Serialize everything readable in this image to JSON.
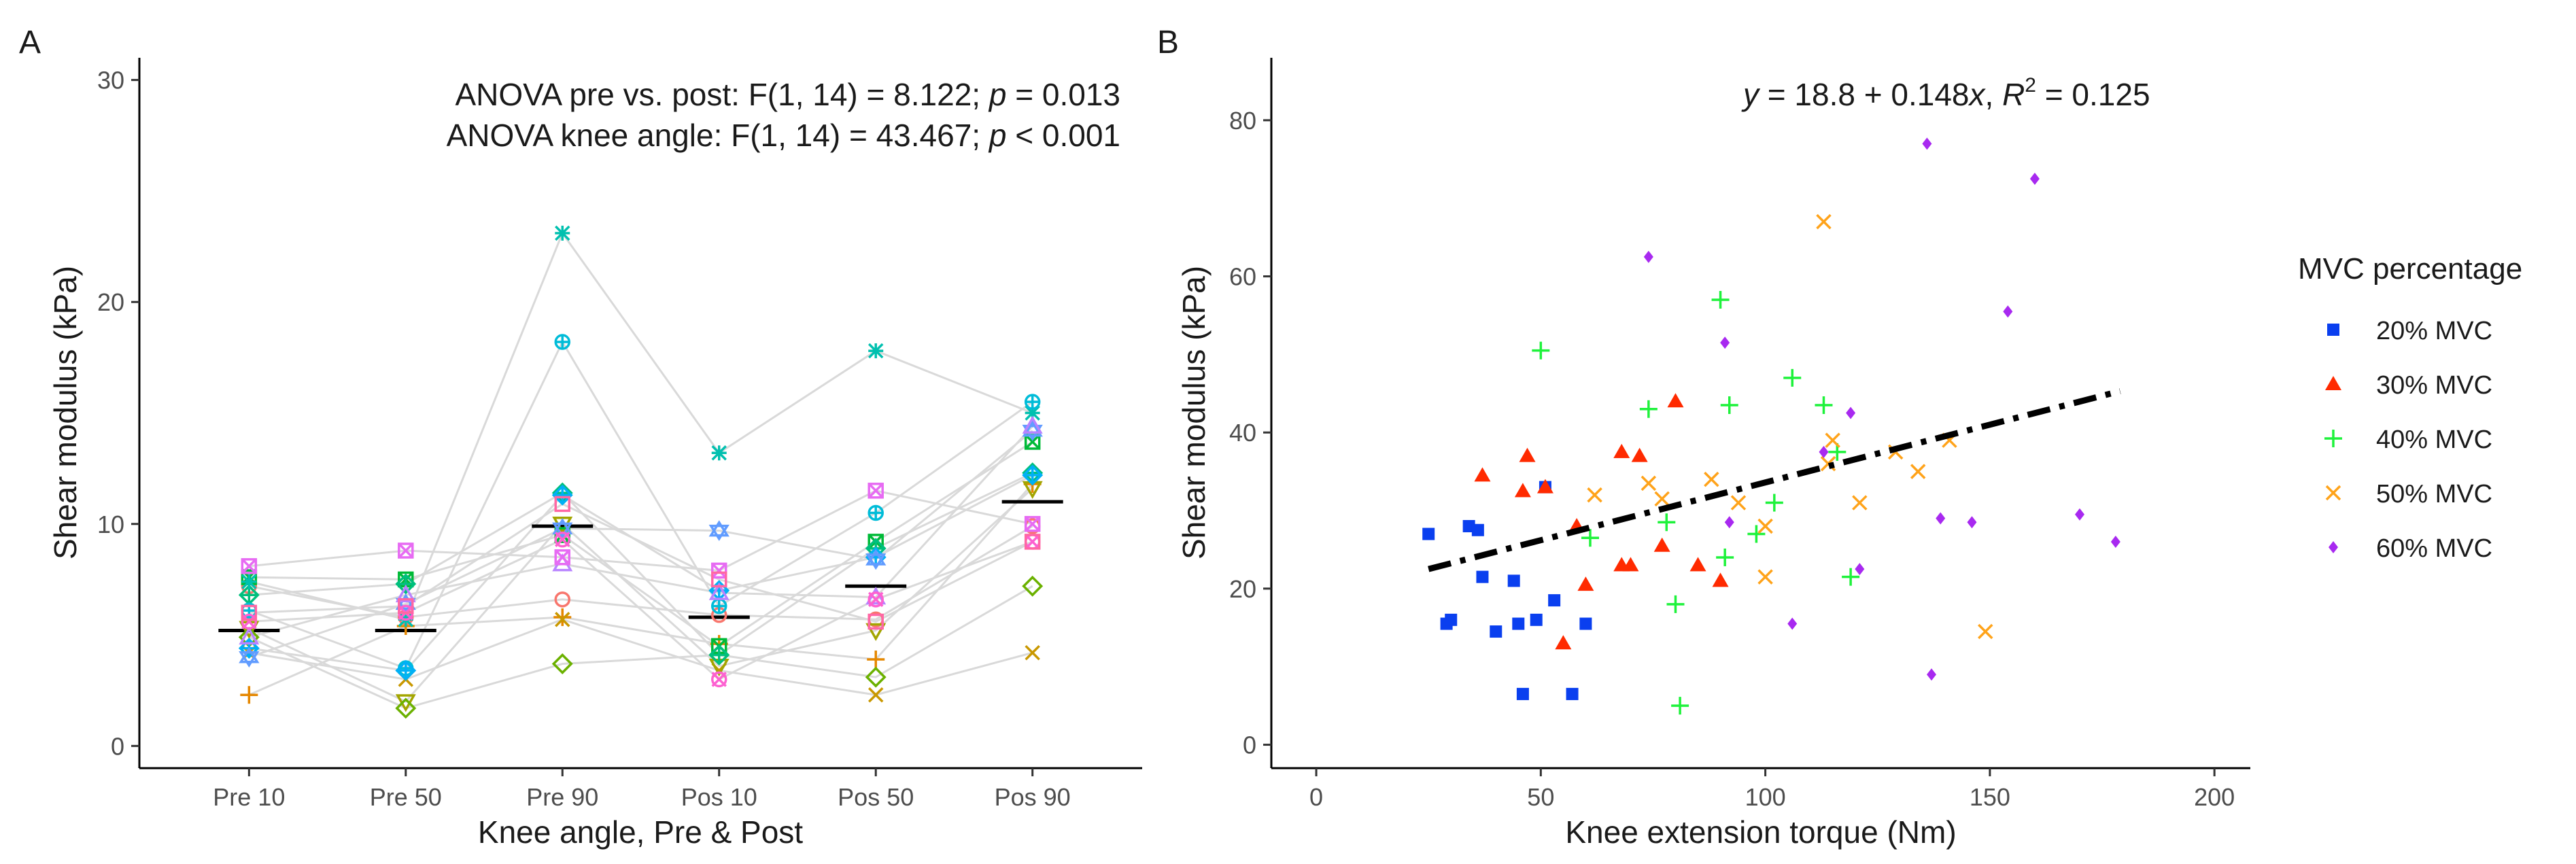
{
  "chart_data": [
    {
      "panel": "A",
      "type": "scatter",
      "ylabel": "Shear modulus (kPa)",
      "xlabel": "Knee angle, Pre & Post",
      "categories": [
        "Pre 10",
        "Pre 50",
        "Pre 90",
        "Pos 10",
        "Pos 50",
        "Pos 90"
      ],
      "ylim": [
        -1,
        31
      ],
      "yticks": [
        0,
        10,
        20,
        30
      ],
      "annotations": [
        {
          "prefix": "ANOVA pre vs. post: F(1, 14) = 8.122; ",
          "p": "p",
          "suffix": " = 0.013"
        },
        {
          "prefix": "ANOVA knee angle: F(1, 14) = 43.467; ",
          "p": "p",
          "suffix": " < 0.001"
        }
      ],
      "means": [
        5.2,
        5.2,
        9.9,
        5.8,
        7.2,
        11.0
      ],
      "subjects": [
        {
          "color": "#F8766D",
          "shape": "circle-open",
          "values": [
            7.2,
            5.8,
            6.6,
            5.9,
            5.7,
            9.9
          ]
        },
        {
          "color": "#E58700",
          "shape": "plus",
          "values": [
            2.3,
            5.4,
            5.8,
            4.6,
            3.9,
            11.8
          ]
        },
        {
          "color": "#C99800",
          "shape": "cross",
          "values": [
            4.2,
            3.0,
            5.7,
            3.4,
            2.3,
            4.2
          ]
        },
        {
          "color": "#A3A500",
          "shape": "triangle-down-open",
          "values": [
            5.3,
            2.0,
            10.0,
            3.6,
            5.2,
            11.6
          ]
        },
        {
          "color": "#6BB100",
          "shape": "diamond-open",
          "values": [
            4.9,
            1.7,
            3.7,
            4.1,
            3.1,
            7.2
          ]
        },
        {
          "color": "#00BA38",
          "shape": "square-cross",
          "values": [
            7.6,
            7.5,
            9.5,
            4.5,
            9.2,
            13.7
          ]
        },
        {
          "color": "#00BF7D",
          "shape": "diamond-plus",
          "values": [
            6.8,
            7.3,
            11.4,
            4.1,
            8.9,
            12.3
          ]
        },
        {
          "color": "#00C0AF",
          "shape": "asterisk",
          "values": [
            7.4,
            5.7,
            23.1,
            13.2,
            17.8,
            15.0
          ]
        },
        {
          "color": "#00BCD8",
          "shape": "circle-plus",
          "values": [
            6.1,
            3.5,
            18.2,
            6.3,
            10.5,
            15.5
          ]
        },
        {
          "color": "#00B0F6",
          "shape": "diamond-plus",
          "values": [
            4.4,
            3.4,
            11.3,
            7.0,
            8.5,
            12.2
          ]
        },
        {
          "color": "#619CFF",
          "shape": "star-of-david",
          "values": [
            4.0,
            6.4,
            9.8,
            9.7,
            8.4,
            14.2
          ]
        },
        {
          "color": "#B983FF",
          "shape": "triangle-open",
          "values": [
            4.9,
            6.8,
            8.2,
            6.9,
            6.7,
            14.4
          ]
        },
        {
          "color": "#E76BF3",
          "shape": "square-cross",
          "values": [
            8.1,
            8.8,
            8.5,
            7.9,
            11.5,
            10.0
          ]
        },
        {
          "color": "#FD61D1",
          "shape": "circle-cross",
          "values": [
            5.6,
            6.0,
            9.3,
            3.0,
            6.6,
            9.2
          ]
        },
        {
          "color": "#FF67A4",
          "shape": "square-open",
          "values": [
            6.0,
            6.3,
            10.9,
            7.5,
            5.6,
            9.2
          ]
        }
      ]
    },
    {
      "panel": "B",
      "type": "scatter",
      "ylabel": "Shear modulus (kPa)",
      "xlabel": "Knee extension torque (Nm)",
      "xlim": [
        -10,
        208
      ],
      "ylim": [
        -3,
        88
      ],
      "xticks": [
        0,
        50,
        100,
        150,
        200
      ],
      "yticks": [
        0,
        20,
        40,
        60,
        80
      ],
      "equation": {
        "y": "y",
        "mid": " = 18.8 + 0.148",
        "x": "x",
        "sep": ",  ",
        "r": "R",
        "sup": "2",
        "end": " = 0.125"
      },
      "fit": {
        "intercept": 18.8,
        "slope": 0.148,
        "x_range": [
          25,
          179
        ],
        "color": "#000000",
        "style": "dash-dot"
      },
      "legend": {
        "title": "MVC percentage",
        "position": "right"
      },
      "series": [
        {
          "name": "20% MVC",
          "color": "#0A3FEF",
          "shape": "square",
          "points": [
            [
              25,
              27
            ],
            [
              29,
              15.5
            ],
            [
              30,
              16
            ],
            [
              34,
              28
            ],
            [
              36,
              27.5
            ],
            [
              37,
              21.5
            ],
            [
              40,
              14.5
            ],
            [
              44,
              21
            ],
            [
              45,
              15.5
            ],
            [
              46,
              6.5
            ],
            [
              49,
              16
            ],
            [
              51,
              33
            ],
            [
              53,
              18.5
            ],
            [
              57,
              6.5
            ],
            [
              60,
              15.5
            ]
          ]
        },
        {
          "name": "30% MVC",
          "color": "#FF2A00",
          "shape": "triangle",
          "points": [
            [
              37,
              34.5
            ],
            [
              46,
              32.5
            ],
            [
              47,
              37
            ],
            [
              51,
              33
            ],
            [
              55,
              13
            ],
            [
              58,
              28
            ],
            [
              60,
              20.5
            ],
            [
              68,
              37.5
            ],
            [
              68,
              23
            ],
            [
              70,
              23
            ],
            [
              72,
              37
            ],
            [
              77,
              25.5
            ],
            [
              80,
              44
            ],
            [
              85,
              23
            ],
            [
              90,
              21
            ]
          ]
        },
        {
          "name": "40% MVC",
          "color": "#1EF23B",
          "shape": "plus",
          "points": [
            [
              50,
              50.5
            ],
            [
              61,
              26.5
            ],
            [
              74,
              43
            ],
            [
              78,
              28.5
            ],
            [
              80,
              18
            ],
            [
              81,
              5
            ],
            [
              90,
              57
            ],
            [
              91,
              24
            ],
            [
              92,
              43.5
            ],
            [
              98,
              27
            ],
            [
              102,
              31
            ],
            [
              106,
              47
            ],
            [
              113,
              43.5
            ],
            [
              119,
              21.5
            ],
            [
              116,
              37.5
            ]
          ]
        },
        {
          "name": "50% MVC",
          "color": "#FFA31A",
          "shape": "cross",
          "points": [
            [
              62,
              32
            ],
            [
              74,
              33.5
            ],
            [
              77,
              31.5
            ],
            [
              88,
              34
            ],
            [
              94,
              31
            ],
            [
              100,
              28
            ],
            [
              100,
              21.5
            ],
            [
              113,
              67
            ],
            [
              114,
              36
            ],
            [
              115,
              39
            ],
            [
              121,
              31
            ],
            [
              129,
              37.5
            ],
            [
              134,
              35
            ],
            [
              141,
              39
            ],
            [
              149,
              14.5
            ]
          ]
        },
        {
          "name": "60% MVC",
          "color": "#A829F0",
          "shape": "diamond",
          "points": [
            [
              74,
              62.5
            ],
            [
              91,
              51.5
            ],
            [
              92,
              28.5
            ],
            [
              106,
              15.5
            ],
            [
              113,
              37.5
            ],
            [
              119,
              42.5
            ],
            [
              121,
              22.5
            ],
            [
              136,
              77
            ],
            [
              137,
              9
            ],
            [
              139,
              29
            ],
            [
              146,
              28.5
            ],
            [
              154,
              55.5
            ],
            [
              160,
              72.5
            ],
            [
              170,
              29.5
            ],
            [
              178,
              26
            ]
          ]
        }
      ]
    }
  ],
  "panels": {
    "a_label": "A",
    "b_label": "B"
  }
}
